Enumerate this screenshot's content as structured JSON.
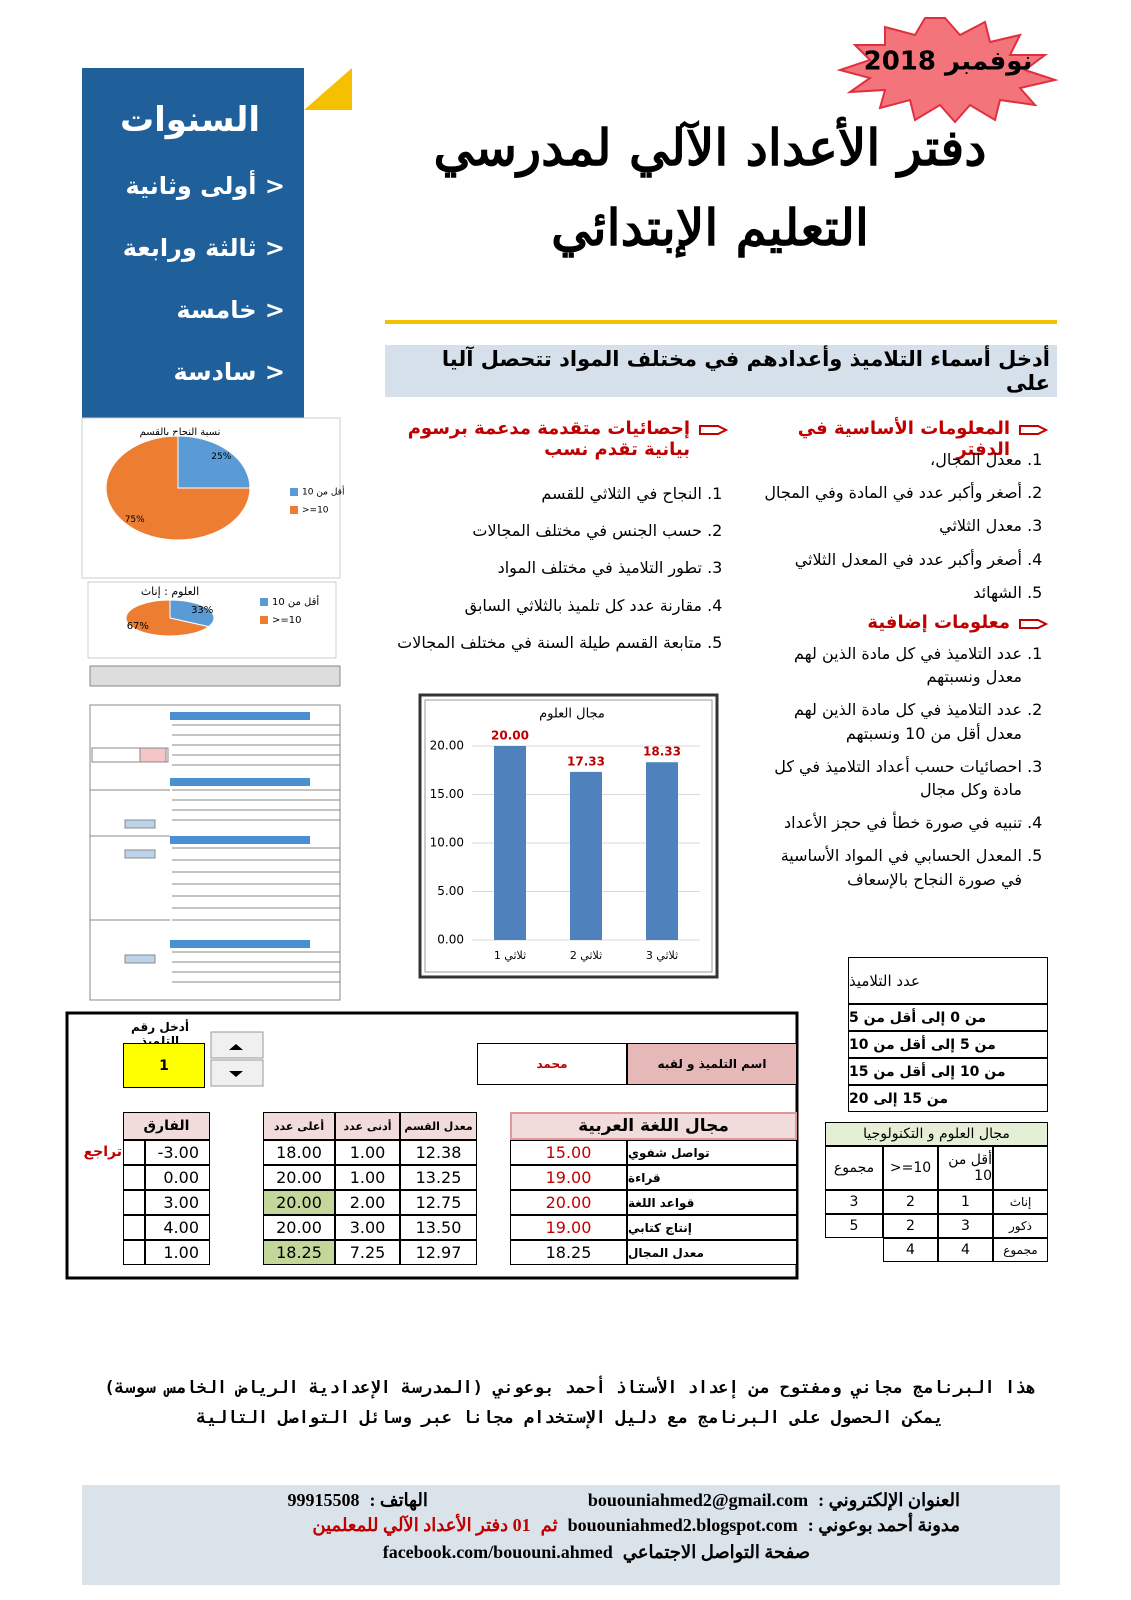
{
  "badge": "نوفمبر 2018",
  "title": [
    "دفتر الأعداد الآلي لمدرسي",
    "التعليم الإبتدائي"
  ],
  "sidebar": {
    "heading": "السنوات",
    "items": [
      "< أولى وثانية",
      "< ثالثة ورابعة",
      "< خامسة",
      "< سادسة"
    ]
  },
  "intro": "أدخل أسماء التلاميذ وأعدادهم في مختلف المواد تتحصل آليا على",
  "basic": {
    "heading": "المعلومات الأساسية في الدفتر",
    "items": [
      "معدل المجال،",
      "أصغر وأكبر عدد في المادة وفي المجال",
      "معدل الثلاثي",
      "أصغر وأكبر عدد في المعدل الثلاثي",
      "الشهائد"
    ]
  },
  "extra": {
    "heading": "معلومات إضافية",
    "items": [
      "عدد التلاميذ في كل مادة الذين لهم معدل ونسبتهم",
      "عدد التلاميذ في كل مادة الذين لهم معدل أقل من 10 ونسبتهم",
      "احصائيات حسب أعداد التلاميذ في كل مادة وكل مجال",
      "تنبيه في صورة خطأ في حجز الأعداد",
      "المعدل الحسابي في المواد الأساسية في صورة النجاح بالإسعاف"
    ]
  },
  "stats": {
    "heading": "إحصائيات متقدمة مدعمة برسوم بيانية تقدم نسب",
    "items": [
      "النجاح في الثلاثي للقسم",
      "حسب الجنس في مختلف المجالات",
      "تطور التلاميذ في مختلف المواد",
      "مقارنة عدد كل تلميذ بالثلاثي السابق",
      "متابعة القسم طيلة السنة في مختلف المجالات"
    ]
  },
  "pie1": {
    "type": "pie",
    "title": "نسبة النجاح بالقسم",
    "categories": [
      "أقل من 10",
      ">=10"
    ],
    "values": [
      25,
      75
    ],
    "value_labels": [
      "25%",
      "75%"
    ],
    "colors": [
      "#5b9bd5",
      "#ed7d31"
    ]
  },
  "pie2": {
    "type": "pie",
    "title": "العلوم : إناث",
    "categories": [
      "أقل من 10",
      ">=10"
    ],
    "values": [
      33,
      67
    ],
    "value_labels": [
      "33%",
      "67%"
    ],
    "colors": [
      "#5b9bd5",
      "#ed7d31"
    ]
  },
  "bar_chart": {
    "type": "bar",
    "title": "مجال العلوم",
    "categories": [
      "ثلاثي 1",
      "ثلاثي 2",
      "ثلاثي 3"
    ],
    "values": [
      20,
      17.33,
      18.33
    ],
    "value_labels": [
      "20.00",
      "17.33",
      "18.33"
    ],
    "color": "#4f81bd",
    "ylim": [
      0,
      20
    ],
    "yticks": [
      {
        "value": 0,
        "label": "0.00"
      },
      {
        "value": 5,
        "label": "5.00"
      },
      {
        "value": 10,
        "label": "10.00"
      },
      {
        "value": 15,
        "label": "15.00"
      },
      {
        "value": 20,
        "label": "20.00"
      }
    ],
    "grid": true
  },
  "count_table": {
    "header": "عدد التلاميذ",
    "rows": [
      "من 0 إلى أقل من 5",
      "من 5 إلى أقل من 10",
      "من 10 إلى أقل من 15",
      "من 15 إلى 20"
    ]
  },
  "science_table": {
    "title": "مجال العلوم و التكنولوجيا",
    "header": [
      "أقل من 10",
      "10=<",
      "مجموع"
    ],
    "rows": [
      [
        "إناث",
        1,
        2,
        3
      ],
      [
        "ذكور",
        3,
        2,
        5
      ],
      [
        "مجموع",
        4,
        4
      ]
    ]
  },
  "student_card": {
    "prompt": "أدخل رقم التلميذ",
    "number": 1,
    "name_label": "اسم التلميذ و لقبه",
    "name": "محمد",
    "domain": "مجال اللغة العربية",
    "col_headers": [
      "معدل القسم",
      "أدنى عدد",
      "أعلى عدد"
    ],
    "diff_header": "الفارق",
    "status": "تراجع",
    "rows": [
      [
        "تواصل شفوي",
        "15.00",
        "12.38",
        "1.00",
        "18.00",
        "-3.00"
      ],
      [
        "قراءة",
        "19.00",
        "13.25",
        "1.00",
        "20.00",
        "0.00"
      ],
      [
        "قواعد اللغة",
        "20.00",
        "12.75",
        "2.00",
        "20.00",
        "3.00"
      ],
      [
        "إنتاج كتابي",
        "19.00",
        "13.50",
        "3.00",
        "20.00",
        "4.00"
      ],
      [
        "معدل المجال",
        "18.25",
        "12.97",
        "7.25",
        "18.25",
        "1.00"
      ]
    ]
  },
  "footer": {
    "line1": "هذا البرنامج مجاني ومفتوح من إعداد الأستاذ أحمد بوعوني (المدرسة الإعدادية الرياض الخامس سوسة)",
    "line2": "يمكن الحصول على البرنامج مع دليل الإستخدام مجانا عبر وسائل التواصل التالية",
    "email_label": "العنوان الإلكتروني :",
    "email": "bououniahmed2@gmail.com",
    "phone_label": "الهاتف :",
    "phone": "99915508",
    "blog_label": "مدونة أحمد بوعوني :",
    "blog": "bououniahmed2.blogspot.com",
    "blog_then": "ثم",
    "blog_note": "01 دفتر الأعداد الآلي للمعلمين",
    "facebook": "facebook.com/bououni.ahmed",
    "facebook_label": "صفحة التواصل الاجتماعي"
  }
}
